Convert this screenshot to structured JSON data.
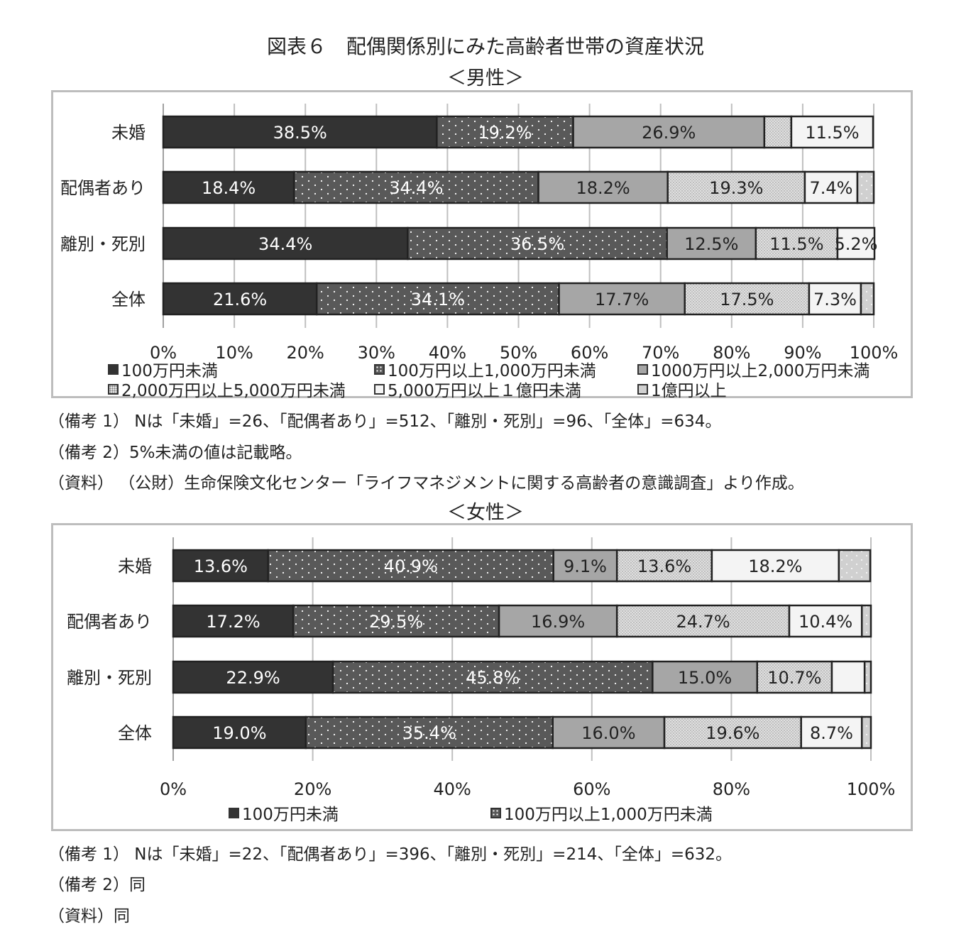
{
  "page": {
    "title": "図表６　配偶関係別にみた高齢者世帯の資産状況",
    "male_subtitle": "＜男性＞",
    "female_subtitle": "＜女性＞",
    "male_notes": [
      "（備考 1）  Nは「未婚」=26、「配偶者あり」=512、「離別・死別」=96、「全体」=634。",
      "（備考 2）5%未満の値は記載略。",
      "（資料）  （公財）生命保険文化センター「ライフマネジメントに関する高齢者の意識調査」より作成。"
    ],
    "female_notes": [
      "（備考 1）  Nは「未婚」=22、「配偶者あり」=396、「離別・死別」=214、「全体」=632。",
      "（備考 2）同",
      "（資料）同"
    ]
  },
  "colors": {
    "band0": "#333333",
    "band1": "#595959",
    "band2": "#a6a6a6",
    "band3": "#e0e0e0",
    "band4": "#f4f4f4",
    "band5": "#d0d0d0"
  },
  "chart_data": [
    {
      "type": "bar",
      "orientation": "horizontal",
      "stacked": true,
      "subtitle": "＜男性＞",
      "categories": [
        "未婚",
        "配偶者あり",
        "離別・死別",
        "全体"
      ],
      "xlim": [
        0,
        100
      ],
      "xticks": [
        "0%",
        "10%",
        "20%",
        "30%",
        "40%",
        "50%",
        "60%",
        "70%",
        "80%",
        "90%",
        "100%"
      ],
      "grid": true,
      "legend_position": "bottom",
      "series": [
        {
          "name": "100万円未満",
          "values": [
            38.5,
            18.4,
            34.4,
            21.6
          ],
          "labels": [
            "38.5%",
            "18.4%",
            "34.4%",
            "21.6%"
          ]
        },
        {
          "name": "100万円以上1,000万円未満",
          "values": [
            19.2,
            34.4,
            36.5,
            34.1
          ],
          "labels": [
            "19.2%",
            "34.4%",
            "36.5%",
            "34.1%"
          ]
        },
        {
          "name": "1000万円以上2,000万円未満",
          "values": [
            26.9,
            18.2,
            12.5,
            17.7
          ],
          "labels": [
            "26.9%",
            "18.2%",
            "12.5%",
            "17.7%"
          ]
        },
        {
          "name": "2,000万円以上5,000万円未満",
          "values": [
            3.8,
            19.3,
            11.5,
            17.5
          ],
          "labels": [
            "",
            "19.3%",
            "11.5%",
            "17.5%"
          ]
        },
        {
          "name": "5,000万円以上１億円未満",
          "values": [
            11.5,
            7.4,
            5.2,
            7.3
          ],
          "labels": [
            "11.5%",
            "7.4%",
            "5.2%",
            "7.3%"
          ]
        },
        {
          "name": "1億円以上",
          "values": [
            0.0,
            2.3,
            0.0,
            1.8
          ],
          "labels": [
            "",
            "",
            "",
            ""
          ]
        }
      ]
    },
    {
      "type": "bar",
      "orientation": "horizontal",
      "stacked": true,
      "subtitle": "＜女性＞",
      "categories": [
        "未婚",
        "配偶者あり",
        "離別・死別",
        "全体"
      ],
      "xlim": [
        0,
        100
      ],
      "xticks": [
        "0%",
        "20%",
        "40%",
        "60%",
        "80%",
        "100%"
      ],
      "grid": true,
      "legend_position": "bottom",
      "series": [
        {
          "name": "100万円未満",
          "values": [
            13.6,
            17.2,
            22.9,
            19.0
          ],
          "labels": [
            "13.6%",
            "17.2%",
            "22.9%",
            "19.0%"
          ]
        },
        {
          "name": "100万円以上1,000万円未満",
          "values": [
            40.9,
            29.5,
            45.8,
            35.4
          ],
          "labels": [
            "40.9%",
            "29.5%",
            "45.8%",
            "35.4%"
          ]
        },
        {
          "name": "",
          "values": [
            9.1,
            16.9,
            15.0,
            16.0
          ],
          "labels": [
            "9.1%",
            "16.9%",
            "15.0%",
            "16.0%"
          ]
        },
        {
          "name": "",
          "values": [
            13.6,
            24.7,
            10.7,
            19.6
          ],
          "labels": [
            "13.6%",
            "24.7%",
            "10.7%",
            "19.6%"
          ]
        },
        {
          "name": "",
          "values": [
            18.2,
            10.4,
            4.7,
            8.7
          ],
          "labels": [
            "18.2%",
            "10.4%",
            "",
            "8.7%"
          ]
        },
        {
          "name": "",
          "values": [
            4.5,
            1.3,
            0.9,
            1.3
          ],
          "labels": [
            "",
            "",
            "",
            ""
          ]
        }
      ]
    }
  ]
}
